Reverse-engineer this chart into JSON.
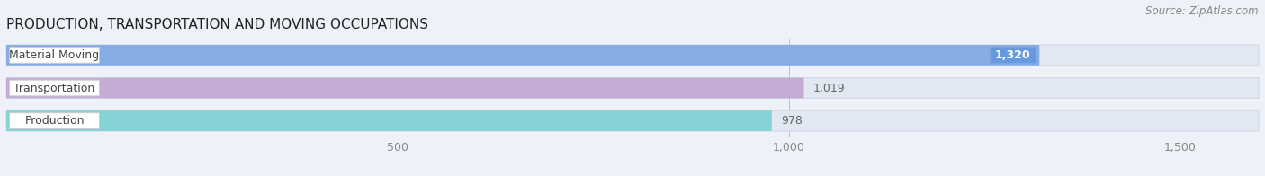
{
  "title": "PRODUCTION, TRANSPORTATION AND MOVING OCCUPATIONS",
  "source_text": "Source: ZipAtlas.com",
  "categories": [
    "Material Moving",
    "Transportation",
    "Production"
  ],
  "values": [
    1320,
    1019,
    978
  ],
  "bar_colors": [
    "#6699dd",
    "#bb99cc",
    "#66cccc"
  ],
  "label_values": [
    "1,320",
    "1,019",
    "978"
  ],
  "value_in_bar": [
    true,
    false,
    false
  ],
  "value_text_colors": [
    "white",
    "#666666",
    "#666666"
  ],
  "xlim_max": 1600,
  "xticks": [
    500,
    1000,
    1500
  ],
  "xtick_labels": [
    "500",
    "1,000",
    "1,500"
  ],
  "background_color": "#eef2f8",
  "bar_bg_color": "#e2e8f2",
  "bar_bg_edge_color": "#d0d8e8",
  "pill_color": "white",
  "pill_edge_color": "#cccccc",
  "title_fontsize": 11,
  "label_fontsize": 9,
  "value_fontsize": 9,
  "source_fontsize": 8.5,
  "tick_fontsize": 9,
  "cat_text_color": "#444444",
  "tick_text_color": "#888888"
}
